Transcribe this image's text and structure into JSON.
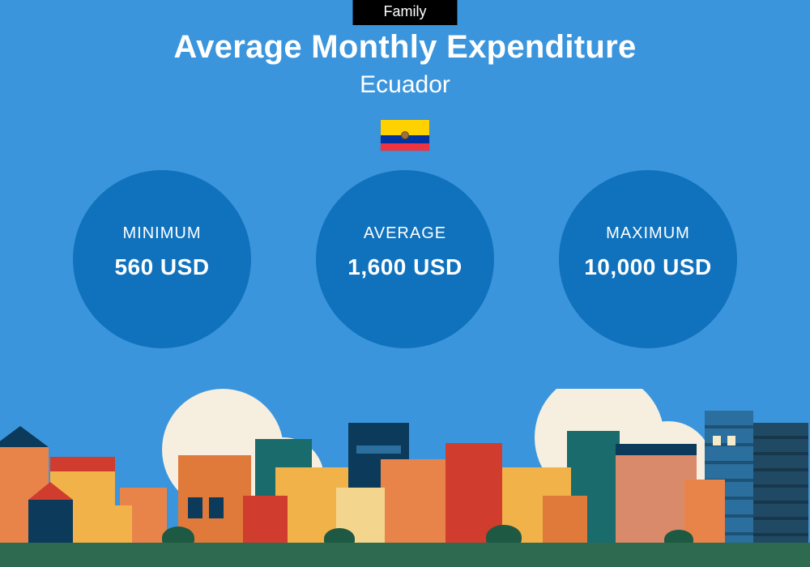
{
  "badge": "Family",
  "title": "Average Monthly Expenditure",
  "subtitle": "Ecuador",
  "flag_colors": {
    "top": "#ffd100",
    "middle": "#0033a0",
    "bottom": "#ef3340"
  },
  "background_color": "#3b95dd",
  "circle_color": "#1072bd",
  "stats": [
    {
      "label": "MINIMUM",
      "value": "560 USD"
    },
    {
      "label": "AVERAGE",
      "value": "1,600 USD"
    },
    {
      "label": "MAXIMUM",
      "value": "10,000 USD"
    }
  ],
  "city_palette": {
    "ground": "#2d6a4f",
    "cloud": "#f6efe0",
    "orange": "#e8844a",
    "dark_orange": "#e07a3a",
    "yellow": "#f2b24a",
    "sand": "#f4d58d",
    "red": "#d03c2e",
    "navy": "#0b3a5b",
    "teal": "#1a6b6b",
    "blue": "#2a6f9e",
    "blue_dark": "#204a63",
    "tan": "#d98a6a",
    "bush": "#1e5943"
  }
}
